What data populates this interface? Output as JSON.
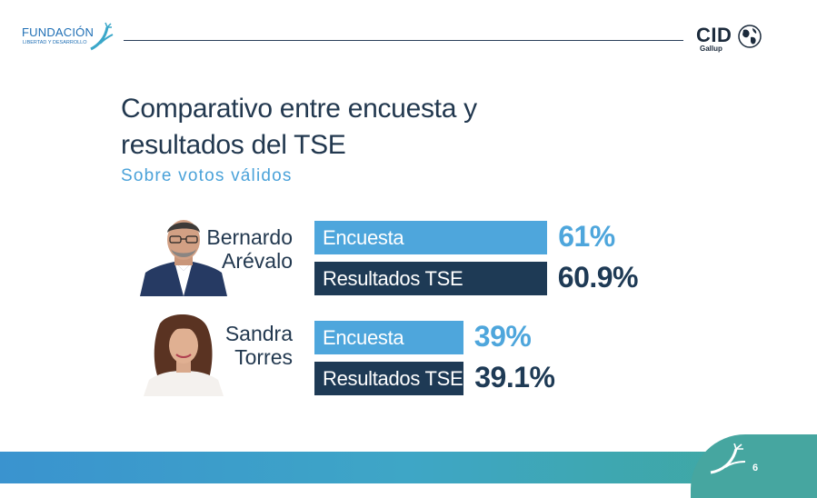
{
  "header": {
    "left_logo": {
      "name": "FUNDACIÓN",
      "tagline": "LIBERTAD Y DESARROLLO"
    },
    "right_logo": {
      "name": "CID",
      "sub": "Gallup"
    }
  },
  "title_line1": "Comparativo entre encuesta y",
  "title_line2": "resultados del TSE",
  "subtitle": "Sobre votos válidos",
  "colors": {
    "encuesta": "#4ea6dc",
    "resultados": "#1e3a55",
    "encuesta_text": "#4ea6dc",
    "resultados_text": "#1e3a55"
  },
  "chart_data": {
    "type": "bar",
    "categories": [
      "Bernardo Arévalo",
      "Sandra Torres"
    ],
    "series": [
      {
        "name": "Encuesta",
        "values": [
          61,
          39
        ],
        "labels": [
          "61%",
          "39%"
        ]
      },
      {
        "name": "Resultados TSE",
        "values": [
          60.9,
          39.1
        ],
        "labels": [
          "60.9%",
          "39.1%"
        ]
      }
    ]
  },
  "candidates": [
    {
      "line1": "Bernardo",
      "line2": "Arévalo"
    },
    {
      "line1": "Sandra",
      "line2": "Torres"
    }
  ],
  "footer": {
    "page_number": "6"
  }
}
